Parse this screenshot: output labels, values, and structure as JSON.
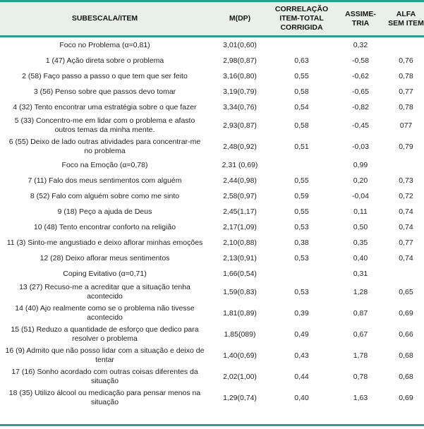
{
  "table": {
    "header": [
      "SUBESCALA/ITEM",
      "M(DP)",
      "CORRELAÇÃO ITEM-TOTAL CORRIGIDA",
      "ASSIME-TRIA",
      "ALFA SEM ITEM"
    ],
    "rows": [
      {
        "item": "Foco no Problema (α=0,81)",
        "mdp": "3,01(0,60)",
        "corr": "",
        "assim": "0,32",
        "alfa": "",
        "subscale": true
      },
      {
        "item": "1 (47) Ação direta sobre o problema",
        "mdp": "2,98(0,87)",
        "corr": "0,63",
        "assim": "-0,58",
        "alfa": "0,76",
        "subscale": false
      },
      {
        "item": "2 (58) Faço passo a passo o que tem que ser feito",
        "mdp": "3,16(0,80)",
        "corr": "0,55",
        "assim": "-0,62",
        "alfa": "0,78",
        "subscale": false
      },
      {
        "item": "3 (56) Penso sobre que passos devo tomar",
        "mdp": "3,19(0,79)",
        "corr": "0,58",
        "assim": "-0,65",
        "alfa": "0,77",
        "subscale": false
      },
      {
        "item": "4 (32) Tento encontrar uma estratégia sobre o que fazer",
        "mdp": "3,34(0,76)",
        "corr": "0,54",
        "assim": "-0,82",
        "alfa": "0,78",
        "subscale": false
      },
      {
        "item": "5 (33) Concentro-me em lidar com o problema e afasto outros temas da minha mente.",
        "mdp": "2,93(0,87)",
        "corr": "0,58",
        "assim": "-0,45",
        "alfa": "077",
        "subscale": false
      },
      {
        "item": "6 (55) Deixo de lado outras atividades para concentrar-me no problema",
        "mdp": "2,48(0,92)",
        "corr": "0,51",
        "assim": "-0,03",
        "alfa": "0,79",
        "subscale": false
      },
      {
        "item": "Foco na Emoção (α=0,78)",
        "mdp": "2,31 (0,69)",
        "corr": "",
        "assim": "0,99",
        "alfa": "",
        "subscale": true
      },
      {
        "item": "7 (11) Falo dos meus sentimentos com alguém",
        "mdp": "2,44(0,98)",
        "corr": "0,55",
        "assim": "0,20",
        "alfa": "0,73",
        "subscale": false
      },
      {
        "item": "8 (52) Falo com alguém sobre como me sinto",
        "mdp": "2,58(0,97)",
        "corr": "0,59",
        "assim": "-0,04",
        "alfa": "0,72",
        "subscale": false
      },
      {
        "item": "9 (18) Peço a ajuda de Deus",
        "mdp": "2,45(1,17)",
        "corr": "0,55",
        "assim": "0,11",
        "alfa": "0,74",
        "subscale": false
      },
      {
        "item": "10 (48) Tento encontrar conforto na religião",
        "mdp": "2,17(1,09)",
        "corr": "0,53",
        "assim": "0,50",
        "alfa": "0,74",
        "subscale": false
      },
      {
        "item": "11 (3) Sinto-me angustiado e deixo aflorar minhas emoções",
        "mdp": "2,10(0,88)",
        "corr": "0,38",
        "assim": "0,35",
        "alfa": "0,77",
        "subscale": false
      },
      {
        "item": "12 (28) Deixo aflorar meus sentimentos",
        "mdp": "2,13(0,91)",
        "corr": "0,53",
        "assim": "0,40",
        "alfa": "0,74",
        "subscale": false
      },
      {
        "item": "Coping Evitativo (α=0,71)",
        "mdp": "1,66(0,54)",
        "corr": "",
        "assim": "0,31",
        "alfa": "",
        "subscale": true
      },
      {
        "item": "13 (27) Recuso-me a acreditar que a situação tenha acontecido",
        "mdp": "1,59(0,83)",
        "corr": "0,53",
        "assim": "1,28",
        "alfa": "0,65",
        "subscale": false
      },
      {
        "item": "14 (40) Ajo realmente como se o problema não tivesse acontecido",
        "mdp": "1,81(0,89)",
        "corr": "0,39",
        "assim": "0,87",
        "alfa": "0,69",
        "subscale": false
      },
      {
        "item": "15 (51) Reduzo a quantidade de esforço que dedico para resolver o problema",
        "mdp": "1,85(089)",
        "corr": "0,49",
        "assim": "0,67",
        "alfa": "0,66",
        "subscale": false
      },
      {
        "item": "16 (9) Admito que não posso lidar com a situação e deixo de tentar",
        "mdp": "1,40(0,69)",
        "corr": "0,43",
        "assim": "1,78",
        "alfa": "0,68",
        "subscale": false
      },
      {
        "item": "17 (16) Sonho acordado com outras coisas diferentes da situação",
        "mdp": "2,02(1,00)",
        "corr": "0,44",
        "assim": "0,78",
        "alfa": "0,68",
        "subscale": false
      },
      {
        "item": "18 (35) Utilizo álcool ou medicação para pensar menos na situação",
        "mdp": "1,29(0,74)",
        "corr": "0,40",
        "assim": "1,63",
        "alfa": "0,69",
        "subscale": false
      }
    ]
  },
  "colors": {
    "accent_teal": "#2F9C8D",
    "header_background": "#E9F0EB",
    "text": "#1f1f1f"
  }
}
